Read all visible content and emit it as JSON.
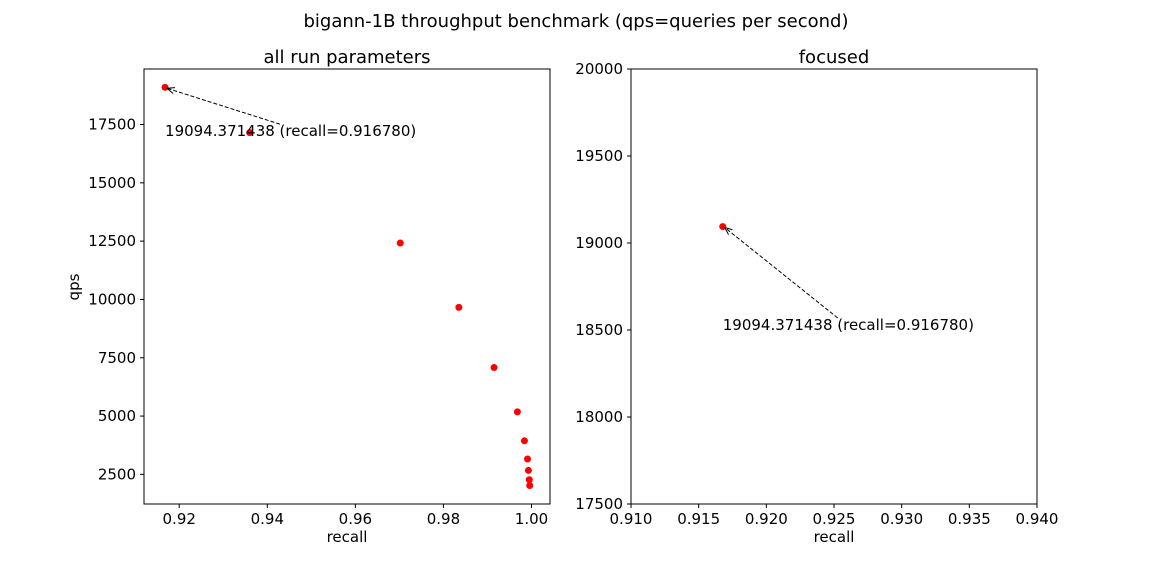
{
  "figure": {
    "suptitle": "bigann-1B throughput benchmark (qps=queries per second)"
  },
  "chart_data": [
    {
      "type": "scatter",
      "title": "all run parameters",
      "xlabel": "recall",
      "ylabel": "qps",
      "xlim": [
        0.912,
        1.0042
      ],
      "ylim": [
        1230,
        19880
      ],
      "xticks": [
        0.92,
        0.94,
        0.96,
        0.98,
        1.0
      ],
      "xtick_labels": [
        "0.92",
        "0.94",
        "0.96",
        "0.98",
        "1.00"
      ],
      "yticks": [
        2500,
        5000,
        7500,
        10000,
        12500,
        15000,
        17500
      ],
      "ytick_labels": [
        "2500",
        "5000",
        "7500",
        "10000",
        "12500",
        "15000",
        "17500"
      ],
      "grid": false,
      "marker_color": "#ff0000",
      "points": [
        {
          "x": 0.91678,
          "y": 19094.371438
        },
        {
          "x": 0.936,
          "y": 17150
        },
        {
          "x": 0.9702,
          "y": 12420
        },
        {
          "x": 0.9835,
          "y": 9660
        },
        {
          "x": 0.9915,
          "y": 7080
        },
        {
          "x": 0.9968,
          "y": 5180
        },
        {
          "x": 0.9984,
          "y": 3940
        },
        {
          "x": 0.9991,
          "y": 3160
        },
        {
          "x": 0.9993,
          "y": 2670
        },
        {
          "x": 0.9995,
          "y": 2270
        },
        {
          "x": 0.9996,
          "y": 2020
        }
      ],
      "annotation": {
        "text": "19094.371438 (recall=0.916780)",
        "x": 0.91678,
        "y": 19094.371438,
        "text_x": 0.91678,
        "text_y": 17000
      }
    },
    {
      "type": "scatter",
      "title": "focused",
      "xlabel": "recall",
      "ylabel": "",
      "xlim": [
        0.91,
        0.94
      ],
      "ylim": [
        17500,
        20000
      ],
      "xticks": [
        0.91,
        0.915,
        0.92,
        0.925,
        0.93,
        0.935,
        0.94
      ],
      "xtick_labels": [
        "0.910",
        "0.915",
        "0.920",
        "0.925",
        "0.930",
        "0.935",
        "0.940"
      ],
      "yticks": [
        17500,
        18000,
        18500,
        19000,
        19500,
        20000
      ],
      "ytick_labels": [
        "17500",
        "18000",
        "18500",
        "19000",
        "19500",
        "20000"
      ],
      "grid": false,
      "marker_color": "#ff0000",
      "points": [
        {
          "x": 0.91678,
          "y": 19094.371438
        }
      ],
      "annotation": {
        "text": "19094.371438 (recall=0.916780)",
        "x": 0.91678,
        "y": 19094.371438,
        "text_x": 0.91678,
        "text_y": 18500
      }
    }
  ]
}
